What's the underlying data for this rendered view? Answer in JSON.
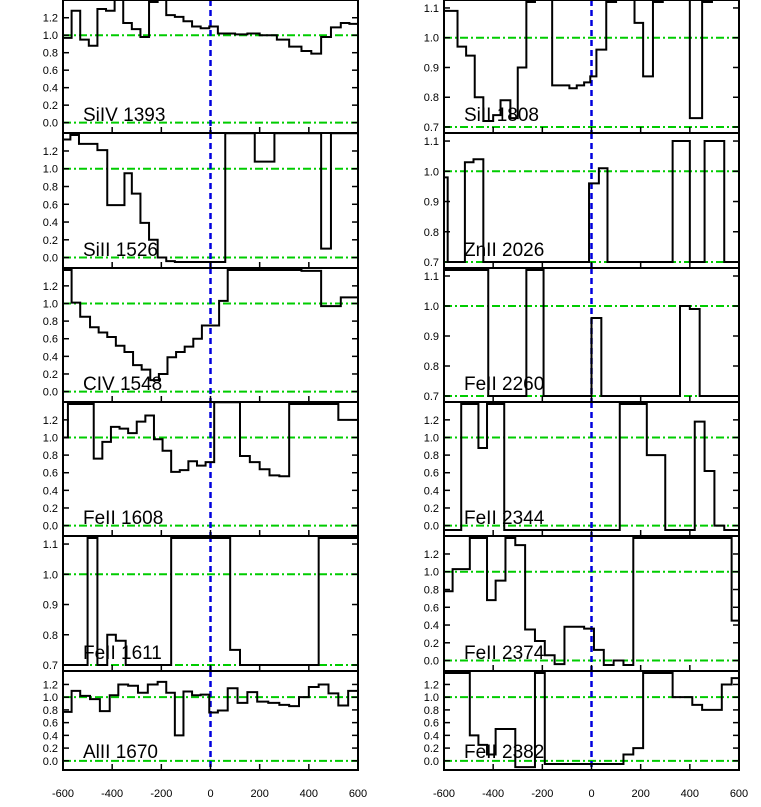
{
  "figure": {
    "x_tick_labels": [
      "-600",
      "-400",
      "-200",
      "0",
      "200",
      "400",
      "600"
    ]
  },
  "colors": {
    "spectrum": "#000000",
    "continuum": "#00cc00",
    "zero_velocity": "#0000dd",
    "frame": "#000000"
  },
  "chart_data": [
    {
      "type": "line",
      "label": "SiIV 1393",
      "xlim": [
        -600,
        600
      ],
      "ylim": [
        -0.05,
        1.38
      ],
      "yticks": [
        "0.0",
        "0.2",
        "0.4",
        "0.6",
        "0.8",
        "1.0",
        "1.2"
      ],
      "yticks_values": [
        0,
        0.2,
        0.4,
        0.6,
        0.8,
        1.0,
        1.2
      ],
      "reference_lines": [
        1.0,
        0.0
      ],
      "zero_velocity": 0,
      "x": [
        -600,
        -565,
        -530,
        -495,
        -460,
        -425,
        -390,
        -355,
        -320,
        -285,
        -250,
        -215,
        -180,
        -145,
        -110,
        -75,
        -40,
        -5,
        30,
        100,
        150,
        200,
        270,
        320,
        370,
        410,
        450,
        490,
        530,
        565,
        600
      ],
      "y": [
        0.97,
        1.28,
        0.95,
        0.88,
        1.3,
        1.28,
        1.44,
        1.14,
        1.07,
        0.98,
        1.38,
        1.45,
        1.23,
        1.21,
        1.16,
        1.1,
        1.08,
        1.1,
        1.02,
        1.01,
        1.02,
        1.0,
        0.95,
        0.87,
        0.82,
        0.79,
        0.98,
        1.09,
        1.14,
        1.13,
        1.15
      ]
    },
    {
      "type": "line",
      "label": "SiII 1808",
      "xlim": [
        -600,
        600
      ],
      "ylim": [
        0.7,
        1.12
      ],
      "yticks": [
        "0.7",
        "0.8",
        "0.9",
        "1.0",
        "1.1"
      ],
      "yticks_values": [
        0.7,
        0.8,
        0.9,
        1.0,
        1.1
      ],
      "reference_lines": [
        1.0,
        0.7
      ],
      "zero_velocity": 0,
      "x": [
        -600,
        -580,
        -545,
        -510,
        -475,
        -440,
        -400,
        -370,
        -330,
        -300,
        -265,
        -230,
        -195,
        -160,
        -125,
        -90,
        -60,
        -30,
        -5,
        20,
        60,
        100,
        140,
        175,
        210,
        250,
        290,
        320,
        350,
        400,
        450,
        490,
        530,
        575,
        600
      ],
      "y": [
        1.09,
        1.09,
        0.97,
        0.94,
        0.8,
        0.72,
        0.74,
        0.79,
        0.73,
        0.9,
        1.12,
        1.15,
        1.14,
        0.84,
        0.84,
        0.83,
        0.84,
        0.85,
        0.87,
        0.96,
        1.12,
        1.15,
        1.13,
        1.05,
        0.87,
        1.12,
        1.14,
        1.15,
        1.13,
        0.73,
        1.12,
        1.14,
        1.15,
        1.15,
        1.15
      ]
    },
    {
      "type": "line",
      "label": "SiII 1526",
      "xlim": [
        -600,
        600
      ],
      "ylim": [
        -0.05,
        1.38
      ],
      "yticks": [
        "0.0",
        "0.2",
        "0.4",
        "0.6",
        "0.8",
        "1.0",
        "1.2"
      ],
      "yticks_values": [
        0,
        0.2,
        0.4,
        0.6,
        0.8,
        1.0,
        1.2
      ],
      "reference_lines": [
        1.0,
        0.0
      ],
      "zero_velocity": 0,
      "x": [
        -600,
        -570,
        -535,
        -500,
        -460,
        -420,
        -385,
        -350,
        -320,
        -285,
        -250,
        -215,
        -180,
        -145,
        -110,
        -75,
        -40,
        -10,
        25,
        60,
        100,
        140,
        180,
        220,
        260,
        300,
        340,
        380,
        410,
        450,
        490,
        530,
        570,
        600
      ],
      "y": [
        1.33,
        1.38,
        1.28,
        1.28,
        1.21,
        0.59,
        0.59,
        0.95,
        0.72,
        0.39,
        0.2,
        0.0,
        -0.04,
        -0.05,
        -0.05,
        -0.05,
        -0.05,
        -0.05,
        -0.05,
        1.4,
        1.4,
        1.4,
        1.08,
        1.08,
        1.4,
        1.4,
        1.4,
        1.4,
        1.4,
        0.1,
        1.4,
        1.4,
        1.4,
        1.4
      ]
    },
    {
      "type": "line",
      "label": "ZnII 2026",
      "xlim": [
        -600,
        600
      ],
      "ylim": [
        0.7,
        1.12
      ],
      "yticks": [
        "0.7",
        "0.8",
        "0.9",
        "1.0",
        "1.1"
      ],
      "yticks_values": [
        0.7,
        0.8,
        0.9,
        1.0,
        1.1
      ],
      "reference_lines": [
        1.0,
        0.7
      ],
      "zero_velocity": 0,
      "x": [
        -600,
        -585,
        -550,
        -515,
        -480,
        -440,
        -400,
        -360,
        -320,
        -280,
        -240,
        -200,
        -160,
        -120,
        -80,
        -45,
        -10,
        30,
        65,
        100,
        140,
        180,
        220,
        260,
        300,
        330,
        365,
        400,
        430,
        460,
        500,
        540,
        575,
        600
      ],
      "y": [
        0.98,
        0.7,
        0.7,
        1.03,
        1.04,
        0.7,
        0.7,
        0.7,
        0.7,
        0.7,
        0.7,
        0.7,
        0.7,
        0.7,
        0.7,
        0.7,
        0.96,
        1.01,
        0.7,
        0.7,
        0.7,
        0.7,
        0.7,
        0.7,
        0.7,
        1.1,
        1.1,
        0.7,
        0.7,
        1.1,
        1.1,
        0.7,
        0.7,
        0.7
      ]
    },
    {
      "type": "line",
      "label": "CIV 1548",
      "xlim": [
        -600,
        600
      ],
      "ylim": [
        -0.05,
        1.38
      ],
      "yticks": [
        "0.0",
        "0.2",
        "0.4",
        "0.6",
        "0.8",
        "1.0",
        "1.2"
      ],
      "yticks_values": [
        0,
        0.2,
        0.4,
        0.6,
        0.8,
        1.0,
        1.2
      ],
      "reference_lines": [
        1.0,
        0.0
      ],
      "zero_velocity": 0,
      "x": [
        -600,
        -565,
        -530,
        -490,
        -455,
        -420,
        -385,
        -350,
        -315,
        -280,
        -245,
        -210,
        -175,
        -140,
        -105,
        -70,
        -35,
        0,
        35,
        70,
        105,
        140,
        175,
        210,
        250,
        290,
        330,
        370,
        410,
        450,
        490,
        530,
        565,
        600
      ],
      "y": [
        1.38,
        1.01,
        0.85,
        0.73,
        0.67,
        0.62,
        0.52,
        0.45,
        0.3,
        0.25,
        0.13,
        0.2,
        0.39,
        0.45,
        0.51,
        0.6,
        0.75,
        0.75,
        1.03,
        1.38,
        1.38,
        1.38,
        1.38,
        1.38,
        1.38,
        1.38,
        1.38,
        1.37,
        1.37,
        0.97,
        0.97,
        1.07,
        1.07,
        1.07
      ]
    },
    {
      "type": "line",
      "label": "FeII 2260",
      "xlim": [
        -600,
        600
      ],
      "ylim": [
        0.7,
        1.12
      ],
      "yticks": [
        "0.7",
        "0.8",
        "0.9",
        "1.0",
        "1.1"
      ],
      "yticks_values": [
        0.7,
        0.8,
        0.9,
        1.0,
        1.1
      ],
      "reference_lines": [
        1.0,
        0.7
      ],
      "zero_velocity": 0,
      "x": [
        -600,
        -570,
        -535,
        -500,
        -460,
        -420,
        -385,
        -345,
        -305,
        -265,
        -230,
        -195,
        -160,
        -120,
        -80,
        -40,
        0,
        40,
        80,
        120,
        160,
        200,
        240,
        280,
        320,
        360,
        400,
        440,
        480,
        520,
        560,
        600
      ],
      "y": [
        1.12,
        1.12,
        1.12,
        1.12,
        1.12,
        0.7,
        0.7,
        0.7,
        0.7,
        1.12,
        1.12,
        0.7,
        0.7,
        0.7,
        0.7,
        0.7,
        0.96,
        0.7,
        0.7,
        0.7,
        0.7,
        0.7,
        0.7,
        0.7,
        0.7,
        1.0,
        0.99,
        0.7,
        0.7,
        0.7,
        0.7,
        0.7
      ]
    },
    {
      "type": "line",
      "label": "FeII 1608",
      "xlim": [
        -600,
        600
      ],
      "ylim": [
        -0.05,
        1.38
      ],
      "yticks": [
        "0.0",
        "0.2",
        "0.4",
        "0.6",
        "0.8",
        "1.0",
        "1.2"
      ],
      "yticks_values": [
        0,
        0.2,
        0.4,
        0.6,
        0.8,
        1.0,
        1.2
      ],
      "reference_lines": [
        1.0,
        0.0
      ],
      "zero_velocity": 0,
      "x": [
        -600,
        -580,
        -545,
        -510,
        -475,
        -440,
        -405,
        -370,
        -335,
        -300,
        -265,
        -230,
        -195,
        -160,
        -125,
        -90,
        -55,
        -20,
        15,
        50,
        85,
        120,
        160,
        200,
        240,
        280,
        320,
        360,
        400,
        440,
        480,
        520,
        560,
        600
      ],
      "y": [
        1.0,
        1.38,
        1.38,
        1.38,
        0.76,
        0.95,
        1.12,
        1.1,
        1.05,
        1.18,
        1.25,
        0.98,
        0.85,
        0.61,
        0.63,
        0.73,
        0.68,
        0.72,
        1.4,
        1.4,
        1.4,
        0.79,
        0.72,
        0.64,
        0.57,
        0.56,
        1.38,
        1.38,
        1.38,
        1.38,
        1.38,
        1.2,
        1.2,
        0.8
      ]
    },
    {
      "type": "line",
      "label": "FeII 2344",
      "xlim": [
        -600,
        600
      ],
      "ylim": [
        -0.05,
        1.38
      ],
      "yticks": [
        "0.0",
        "0.2",
        "0.4",
        "0.6",
        "0.8",
        "1.0",
        "1.2"
      ],
      "yticks_values": [
        0,
        0.2,
        0.4,
        0.6,
        0.8,
        1.0,
        1.2
      ],
      "reference_lines": [
        1.0,
        0.0
      ],
      "zero_velocity": 0,
      "x": [
        -600,
        -565,
        -530,
        -495,
        -460,
        -425,
        -390,
        -355,
        -320,
        -280,
        -240,
        -200,
        -160,
        -120,
        -80,
        -40,
        0,
        40,
        80,
        115,
        150,
        190,
        225,
        260,
        300,
        340,
        380,
        420,
        460,
        500,
        540,
        580,
        600
      ],
      "y": [
        -0.05,
        -0.05,
        1.38,
        1.38,
        0.88,
        1.38,
        1.38,
        -0.05,
        -0.05,
        -0.05,
        -0.05,
        -0.05,
        -0.05,
        -0.05,
        -0.05,
        -0.05,
        -0.05,
        -0.05,
        -0.05,
        1.38,
        1.38,
        1.38,
        0.8,
        0.8,
        -0.05,
        -0.05,
        -0.05,
        1.18,
        0.62,
        0.0,
        -0.05,
        -0.05,
        -0.05
      ]
    },
    {
      "type": "line",
      "label": "FeII 1611",
      "xlim": [
        -600,
        600
      ],
      "ylim": [
        0.7,
        1.12
      ],
      "yticks": [
        "0.7",
        "0.8",
        "0.9",
        "1.0",
        "1.1"
      ],
      "yticks_values": [
        0.7,
        0.8,
        0.9,
        1.0,
        1.1
      ],
      "reference_lines": [
        1.0,
        0.7
      ],
      "zero_velocity": 0,
      "x": [
        -600,
        -570,
        -535,
        -500,
        -460,
        -420,
        -385,
        -345,
        -305,
        -265,
        -230,
        -195,
        -160,
        -120,
        -80,
        -40,
        0,
        40,
        80,
        120,
        160,
        200,
        240,
        280,
        320,
        360,
        400,
        440,
        480,
        520,
        560,
        600
      ],
      "y": [
        0.7,
        0.7,
        0.7,
        1.12,
        0.7,
        0.8,
        0.78,
        0.7,
        0.7,
        0.7,
        0.7,
        0.7,
        1.12,
        1.12,
        1.12,
        1.12,
        1.12,
        1.12,
        0.75,
        0.7,
        0.7,
        0.7,
        0.7,
        0.7,
        0.7,
        0.7,
        0.7,
        1.12,
        1.12,
        1.12,
        1.12,
        1.11
      ]
    },
    {
      "type": "line",
      "label": "FeII 2374",
      "xlim": [
        -600,
        600
      ],
      "ylim": [
        -0.05,
        1.38
      ],
      "yticks": [
        "0.0",
        "0.2",
        "0.4",
        "0.6",
        "0.8",
        "1.0",
        "1.2"
      ],
      "yticks_values": [
        0,
        0.2,
        0.4,
        0.6,
        0.8,
        1.0,
        1.2
      ],
      "reference_lines": [
        1.0,
        0.0
      ],
      "zero_velocity": 0,
      "x": [
        -600,
        -565,
        -530,
        -495,
        -460,
        -425,
        -390,
        -350,
        -310,
        -270,
        -230,
        -190,
        -150,
        -110,
        -70,
        -30,
        10,
        50,
        90,
        130,
        170,
        210,
        250,
        290,
        330,
        370,
        410,
        450,
        490,
        530,
        570,
        600
      ],
      "y": [
        0.78,
        1.03,
        1.03,
        1.38,
        1.38,
        0.68,
        0.9,
        1.38,
        1.3,
        0.35,
        0.22,
        0.06,
        -0.04,
        0.38,
        0.38,
        0.36,
        0.12,
        -0.05,
        0.0,
        -0.05,
        1.38,
        1.38,
        1.38,
        1.38,
        1.38,
        1.38,
        1.38,
        1.38,
        1.38,
        1.38,
        0.45,
        0.6
      ]
    },
    {
      "type": "line",
      "label": "AlII 1670",
      "xlim": [
        -600,
        600
      ],
      "ylim": [
        -0.05,
        1.38
      ],
      "yticks": [
        "0.0",
        "0.2",
        "0.4",
        "0.6",
        "0.8",
        "1.0",
        "1.2"
      ],
      "yticks_values": [
        0,
        0.2,
        0.4,
        0.6,
        0.8,
        1.0,
        1.2
      ],
      "reference_lines": [
        1.0,
        0.0
      ],
      "zero_velocity": 0,
      "x": [
        -600,
        -565,
        -530,
        -490,
        -450,
        -410,
        -375,
        -335,
        -295,
        -255,
        -215,
        -180,
        -145,
        -110,
        -75,
        -40,
        -5,
        30,
        70,
        110,
        150,
        190,
        235,
        280,
        320,
        360,
        400,
        440,
        480,
        520,
        560,
        600
      ],
      "y": [
        0.77,
        1.1,
        1.02,
        0.97,
        0.78,
        1.03,
        1.2,
        1.18,
        1.07,
        1.2,
        1.24,
        1.07,
        0.4,
        1.09,
        1.03,
        1.04,
        0.76,
        0.79,
        1.14,
        0.91,
        1.08,
        0.93,
        0.91,
        0.88,
        0.86,
        1.0,
        1.16,
        1.2,
        1.06,
        0.87,
        1.1,
        1.1
      ]
    },
    {
      "type": "line",
      "label": "FeII 2382",
      "xlim": [
        -600,
        600
      ],
      "ylim": [
        -0.05,
        1.38
      ],
      "yticks": [
        "0.0",
        "0.2",
        "0.4",
        "0.6",
        "0.8",
        "1.0",
        "1.2"
      ],
      "yticks_values": [
        0,
        0.2,
        0.4,
        0.6,
        0.8,
        1.0,
        1.2
      ],
      "reference_lines": [
        1.0,
        0.0
      ],
      "zero_velocity": 0,
      "x": [
        -600,
        -565,
        -530,
        -495,
        -460,
        -425,
        -390,
        -350,
        -310,
        -270,
        -230,
        -190,
        -150,
        -110,
        -70,
        -30,
        10,
        50,
        90,
        130,
        170,
        210,
        250,
        290,
        330,
        370,
        410,
        450,
        490,
        530,
        570,
        600
      ],
      "y": [
        1.38,
        1.38,
        1.38,
        0.4,
        0.25,
        0.1,
        0.5,
        0.5,
        -0.1,
        -0.1,
        1.38,
        -0.05,
        -0.05,
        -0.05,
        -0.05,
        -0.05,
        -0.05,
        -0.05,
        -0.05,
        0.1,
        0.2,
        1.38,
        1.38,
        1.38,
        1.0,
        1.0,
        0.88,
        0.8,
        0.8,
        1.2,
        1.3,
        1.38
      ]
    }
  ]
}
